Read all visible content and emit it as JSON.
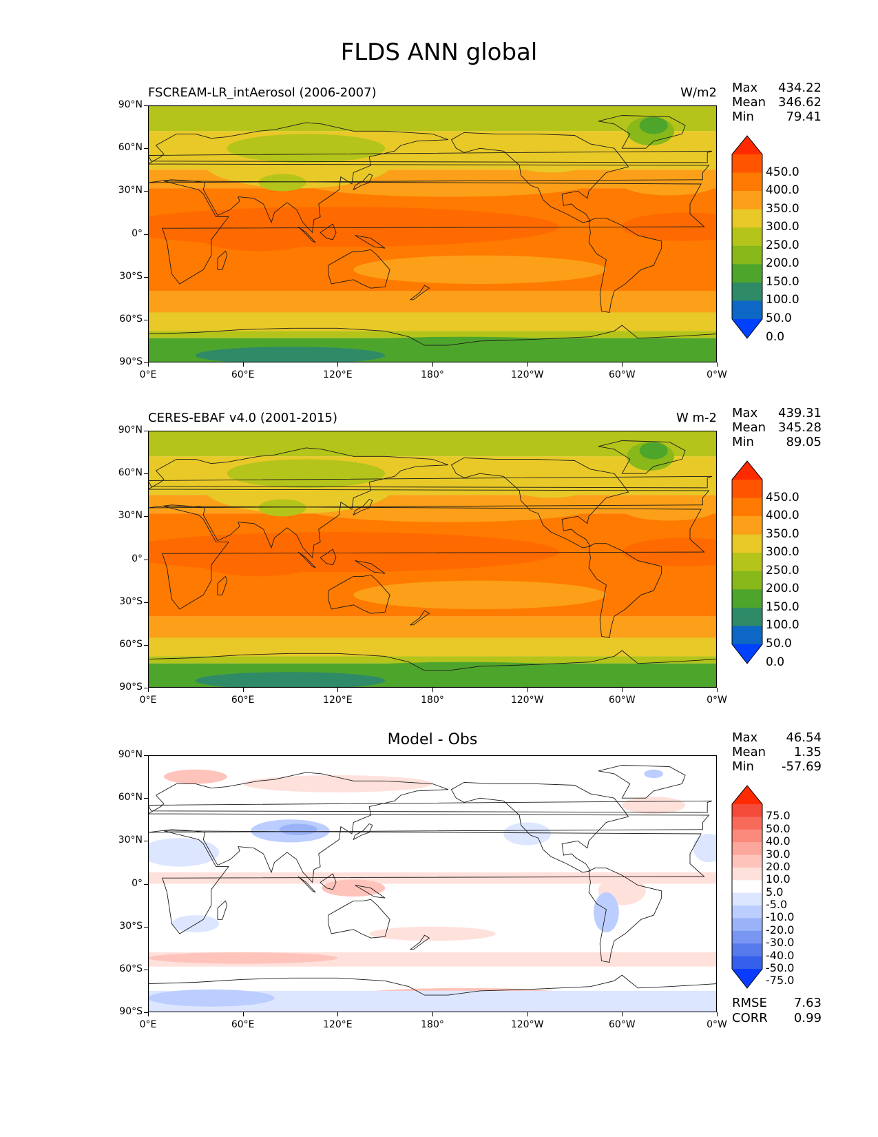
{
  "figure": {
    "title": "FLDS ANN global"
  },
  "axes": {
    "lat_labels": [
      "90°N",
      "60°N",
      "30°N",
      "0°",
      "30°S",
      "60°S",
      "90°S"
    ],
    "lon_labels": [
      "0°E",
      "60°E",
      "120°E",
      "180°",
      "120°W",
      "60°W",
      "0°W"
    ]
  },
  "panels": [
    {
      "id": "model",
      "title": "FSCREAM-LR_intAerosol (2006-2007)",
      "units": "W/m2",
      "center_title": "",
      "stats": {
        "max_label": "Max",
        "max": "434.22",
        "mean_label": "Mean",
        "mean": "346.62",
        "min_label": "Min",
        "min": "79.41"
      },
      "colorbar": {
        "ticks": [
          "450.0",
          "400.0",
          "350.0",
          "300.0",
          "250.0",
          "200.0",
          "150.0",
          "100.0",
          "50.0",
          "0.0"
        ],
        "colors": [
          "#ff2a00",
          "#ff5500",
          "#ff7a00",
          "#fba018",
          "#e8c927",
          "#b4c41a",
          "#88b81a",
          "#4ea52c",
          "#2f8a68",
          "#0d67c4",
          "#0040ff"
        ]
      },
      "field_colors": {
        "polar_low": "#2f8a68",
        "cold": "#4ea52c",
        "cool": "#88b81a",
        "mild": "#b4c41a",
        "temperate": "#e8c927",
        "warm": "#fba018",
        "tropical": "#ff7a00",
        "hot": "#ff6a00"
      }
    },
    {
      "id": "obs",
      "title": "CERES-EBAF v4.0 (2001-2015)",
      "units": "W m-2",
      "center_title": "",
      "stats": {
        "max_label": "Max",
        "max": "439.31",
        "mean_label": "Mean",
        "mean": "345.28",
        "min_label": "Min",
        "min": "89.05"
      },
      "colorbar": {
        "ticks": [
          "450.0",
          "400.0",
          "350.0",
          "300.0",
          "250.0",
          "200.0",
          "150.0",
          "100.0",
          "50.0",
          "0.0"
        ],
        "colors": [
          "#ff2a00",
          "#ff5500",
          "#ff7a00",
          "#fba018",
          "#e8c927",
          "#b4c41a",
          "#88b81a",
          "#4ea52c",
          "#2f8a68",
          "#0d67c4",
          "#0040ff"
        ]
      },
      "field_colors": {
        "polar_low": "#2f8a68",
        "cold": "#4ea52c",
        "cool": "#88b81a",
        "mild": "#b4c41a",
        "temperate": "#e8c927",
        "warm": "#fba018",
        "tropical": "#ff7a00",
        "hot": "#ff6a00"
      }
    },
    {
      "id": "diff",
      "title": "",
      "units": "",
      "center_title": "Model - Obs",
      "stats": {
        "max_label": "Max",
        "max": "46.54",
        "mean_label": "Mean",
        "mean": "1.35",
        "min_label": "Min",
        "min": "-57.69"
      },
      "colorbar": {
        "ticks": [
          "75.0",
          "50.0",
          "40.0",
          "30.0",
          "20.0",
          "10.0",
          "5.0",
          "-5.0",
          "-10.0",
          "-20.0",
          "-30.0",
          "-40.0",
          "-50.0",
          "-75.0"
        ],
        "colors": [
          "#ff2a00",
          "#f44a3a",
          "#f76a5a",
          "#fa8a7c",
          "#fca79c",
          "#fec4bc",
          "#ffe1dc",
          "#ffffff",
          "#dde6ff",
          "#bccdff",
          "#9ab2f8",
          "#7896f2",
          "#577bec",
          "#3560ec",
          "#0a3cff"
        ]
      },
      "field_colors": {
        "pos1": "#ffe1dc",
        "pos2": "#fec4bc",
        "pos3": "#fca79c",
        "neg1": "#dde6ff",
        "neg2": "#bccdff",
        "neg3": "#9ab2f8",
        "neutral": "#ffffff"
      },
      "extra_stats": {
        "rmse_label": "RMSE",
        "rmse": "7.63",
        "corr_label": "CORR",
        "corr": "0.99"
      }
    }
  ]
}
